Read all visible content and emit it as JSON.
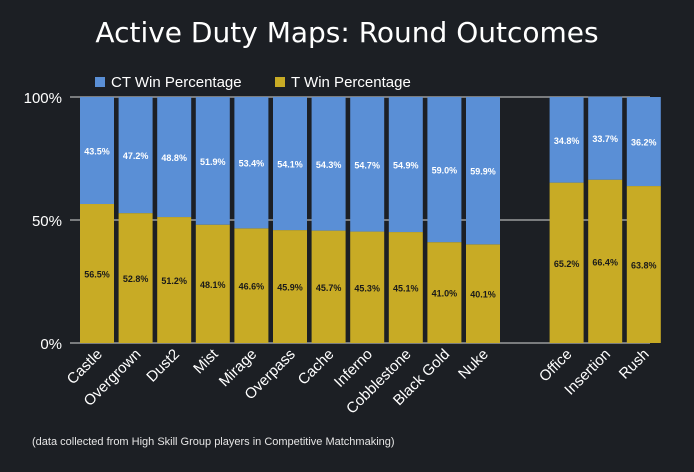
{
  "chart_data": {
    "type": "bar",
    "stacked": true,
    "title": "Active Duty Maps: Round Outcomes",
    "xlabel": "",
    "ylabel": "",
    "ylim": [
      0,
      100
    ],
    "y_ticks": [
      "0%",
      "50%",
      "100%"
    ],
    "y_tick_values": [
      0,
      50,
      100
    ],
    "grid": true,
    "legend_position": "top",
    "groups": [
      [
        "Castle",
        "Overgrown",
        "Dust2",
        "Mist",
        "Mirage",
        "Overpass",
        "Cache",
        "Inferno",
        "Cobblestone",
        "Black Gold",
        "Nuke"
      ],
      [
        "Office",
        "Insertion",
        "Rush"
      ]
    ],
    "categories": [
      "Castle",
      "Overgrown",
      "Dust2",
      "Mist",
      "Mirage",
      "Overpass",
      "Cache",
      "Inferno",
      "Cobblestone",
      "Black Gold",
      "Nuke",
      "Office",
      "Insertion",
      "Rush"
    ],
    "series": [
      {
        "name": "T Win Percentage",
        "color": "#c8ab25",
        "values": [
          56.5,
          52.8,
          51.2,
          48.1,
          46.6,
          45.9,
          45.7,
          45.3,
          45.1,
          41.0,
          40.1,
          65.2,
          66.4,
          63.8
        ],
        "labels": [
          "56.5%",
          "52.8%",
          "51.2%",
          "48.1%",
          "46.6%",
          "45.9%",
          "45.7%",
          "45.3%",
          "45.1%",
          "41.0%",
          "40.1%",
          "65.2%",
          "66.4%",
          "63.8%"
        ]
      },
      {
        "name": "CT Win Percentage",
        "color": "#5a8fd6",
        "values": [
          43.5,
          47.2,
          48.8,
          51.9,
          53.4,
          54.1,
          54.3,
          54.7,
          54.9,
          59.0,
          59.9,
          34.8,
          33.7,
          36.2
        ],
        "labels": [
          "43.5%",
          "47.2%",
          "48.8%",
          "51.9%",
          "53.4%",
          "54.1%",
          "54.3%",
          "54.7%",
          "54.9%",
          "59.0%",
          "59.9%",
          "34.8%",
          "33.7%",
          "36.2%"
        ]
      }
    ],
    "legend": [
      "CT Win Percentage",
      "T Win Percentage"
    ],
    "footnote": "(data collected from High Skill Group players in Competitive Matchmaking)"
  }
}
